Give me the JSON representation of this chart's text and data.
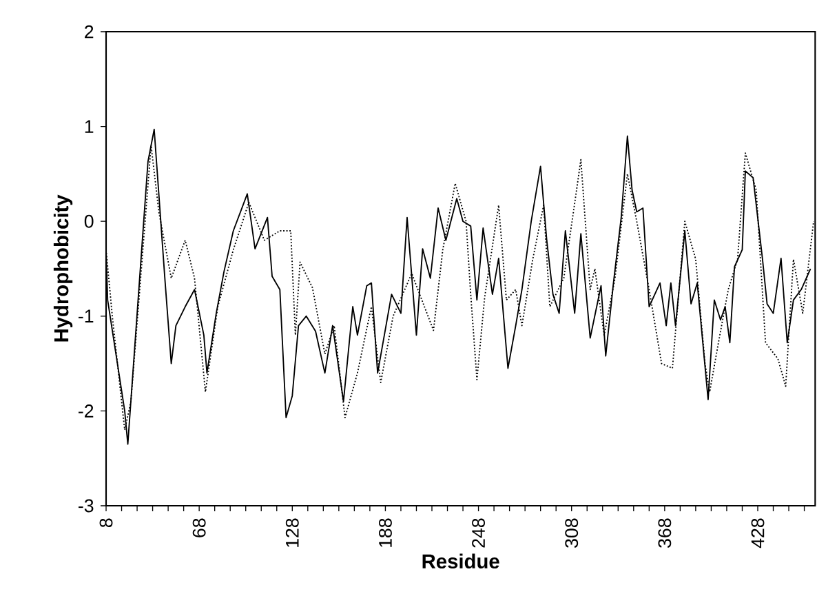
{
  "chart_data": {
    "type": "line",
    "xlabel": "Residue",
    "ylabel": "Hydrophobicity",
    "xlim": [
      8,
      465
    ],
    "ylim": [
      -3,
      2
    ],
    "xticks": [
      {
        "value": 8,
        "label": "8"
      },
      {
        "value": 18,
        "label": null
      },
      {
        "value": 28,
        "label": null
      },
      {
        "value": 38,
        "label": null
      },
      {
        "value": 48,
        "label": null
      },
      {
        "value": 58,
        "label": null
      },
      {
        "value": 68,
        "label": "68"
      },
      {
        "value": 78,
        "label": null
      },
      {
        "value": 88,
        "label": null
      },
      {
        "value": 98,
        "label": null
      },
      {
        "value": 108,
        "label": null
      },
      {
        "value": 118,
        "label": null
      },
      {
        "value": 128,
        "label": "128"
      },
      {
        "value": 138,
        "label": null
      },
      {
        "value": 148,
        "label": null
      },
      {
        "value": 158,
        "label": null
      },
      {
        "value": 168,
        "label": null
      },
      {
        "value": 178,
        "label": null
      },
      {
        "value": 188,
        "label": "188"
      },
      {
        "value": 198,
        "label": null
      },
      {
        "value": 208,
        "label": null
      },
      {
        "value": 218,
        "label": null
      },
      {
        "value": 228,
        "label": null
      },
      {
        "value": 238,
        "label": null
      },
      {
        "value": 248,
        "label": "248"
      },
      {
        "value": 258,
        "label": null
      },
      {
        "value": 268,
        "label": null
      },
      {
        "value": 278,
        "label": null
      },
      {
        "value": 288,
        "label": null
      },
      {
        "value": 298,
        "label": null
      },
      {
        "value": 308,
        "label": "308"
      },
      {
        "value": 318,
        "label": null
      },
      {
        "value": 328,
        "label": null
      },
      {
        "value": 338,
        "label": null
      },
      {
        "value": 348,
        "label": null
      },
      {
        "value": 358,
        "label": null
      },
      {
        "value": 368,
        "label": "368"
      },
      {
        "value": 378,
        "label": null
      },
      {
        "value": 388,
        "label": null
      },
      {
        "value": 398,
        "label": null
      },
      {
        "value": 408,
        "label": null
      },
      {
        "value": 418,
        "label": null
      },
      {
        "value": 428,
        "label": "428"
      },
      {
        "value": 438,
        "label": null
      },
      {
        "value": 448,
        "label": null
      },
      {
        "value": 458,
        "label": null
      }
    ],
    "yticks": [
      -3,
      -2,
      -1,
      0,
      1,
      2
    ],
    "grid": false,
    "marker": "none",
    "series": [
      {
        "color": "#000000",
        "line_style": "solid",
        "x": [
          8,
          9,
          20,
          22,
          35,
          39,
          46,
          50,
          53,
          59,
          65,
          71,
          73,
          79,
          84,
          90,
          99,
          104,
          112,
          115,
          120,
          124,
          128,
          132,
          137,
          143,
          149,
          154,
          161,
          167,
          170,
          176,
          179,
          183,
          192,
          198,
          202,
          208,
          212,
          217,
          222,
          227,
          234,
          238,
          243,
          247,
          251,
          257,
          261,
          267,
          272,
          276,
          282,
          288,
          292,
          296,
          300,
          304,
          310,
          314,
          320,
          327,
          330,
          335,
          340,
          344,
          347,
          350,
          354,
          358,
          365,
          369,
          372,
          375,
          381,
          385,
          389,
          396,
          400,
          404,
          407,
          410,
          413,
          418,
          420,
          425,
          431,
          434,
          438,
          443,
          447,
          451,
          456,
          462
        ],
        "values": [
          -0.33,
          -0.83,
          -2.0,
          -2.35,
          0.63,
          0.97,
          -0.63,
          -1.5,
          -1.1,
          -0.9,
          -0.72,
          -1.2,
          -1.6,
          -0.97,
          -0.53,
          -0.1,
          0.29,
          -0.29,
          0.04,
          -0.58,
          -0.72,
          -2.07,
          -1.84,
          -1.1,
          -1.0,
          -1.16,
          -1.6,
          -1.1,
          -1.9,
          -0.9,
          -1.2,
          -0.68,
          -0.65,
          -1.6,
          -0.77,
          -0.97,
          0.04,
          -1.2,
          -0.29,
          -0.6,
          0.14,
          -0.2,
          0.24,
          0.0,
          -0.05,
          -0.83,
          -0.07,
          -0.77,
          -0.39,
          -1.55,
          -1.1,
          -0.72,
          0.0,
          0.58,
          -0.2,
          -0.77,
          -0.97,
          -0.1,
          -0.97,
          -0.13,
          -1.23,
          -0.68,
          -1.42,
          -0.65,
          0.04,
          0.9,
          0.33,
          0.1,
          0.14,
          -0.9,
          -0.65,
          -1.1,
          -0.65,
          -1.1,
          -0.1,
          -0.87,
          -0.65,
          -1.88,
          -0.83,
          -1.04,
          -0.9,
          -1.28,
          -0.48,
          -0.3,
          0.53,
          0.46,
          -0.39,
          -0.87,
          -0.97,
          -0.39,
          -1.28,
          -0.83,
          -0.72,
          -0.5
        ]
      },
      {
        "color": "#000000",
        "line_style": "dotted",
        "x": [
          8,
          12,
          20,
          24,
          37,
          42,
          50,
          59,
          65,
          72,
          80,
          90,
          100,
          110,
          120,
          127,
          130,
          133,
          141,
          149,
          155,
          162,
          170,
          179,
          185,
          193,
          205,
          219,
          225,
          233,
          240,
          243,
          247,
          252,
          261,
          266,
          272,
          276,
          283,
          290,
          294,
          303,
          310,
          314,
          320,
          323,
          329,
          336,
          344,
          350,
          358,
          366,
          373,
          381,
          388,
          394,
          397,
          403,
          409,
          415,
          420,
          427,
          433,
          441,
          446,
          451,
          457,
          464
        ],
        "values": [
          -0.3,
          -1.0,
          -2.2,
          -1.9,
          0.8,
          0.1,
          -0.6,
          -0.2,
          -0.6,
          -1.8,
          -0.9,
          -0.3,
          0.2,
          -0.2,
          -0.1,
          -0.1,
          -1.2,
          -0.43,
          -0.7,
          -1.4,
          -1.1,
          -2.07,
          -1.6,
          -0.9,
          -1.7,
          -1.0,
          -0.55,
          -1.15,
          -0.3,
          0.4,
          0.0,
          -0.77,
          -1.67,
          -0.8,
          0.17,
          -0.83,
          -0.72,
          -1.1,
          -0.4,
          0.17,
          -0.9,
          -0.6,
          0.19,
          0.65,
          -0.72,
          -0.5,
          -1.2,
          -0.6,
          0.5,
          0.0,
          -0.72,
          -1.5,
          -1.55,
          0.0,
          -0.4,
          -1.5,
          -1.8,
          -1.25,
          -0.72,
          -0.4,
          0.72,
          0.33,
          -1.28,
          -1.45,
          -1.74,
          -0.4,
          -0.97,
          0.0
        ]
      }
    ]
  }
}
